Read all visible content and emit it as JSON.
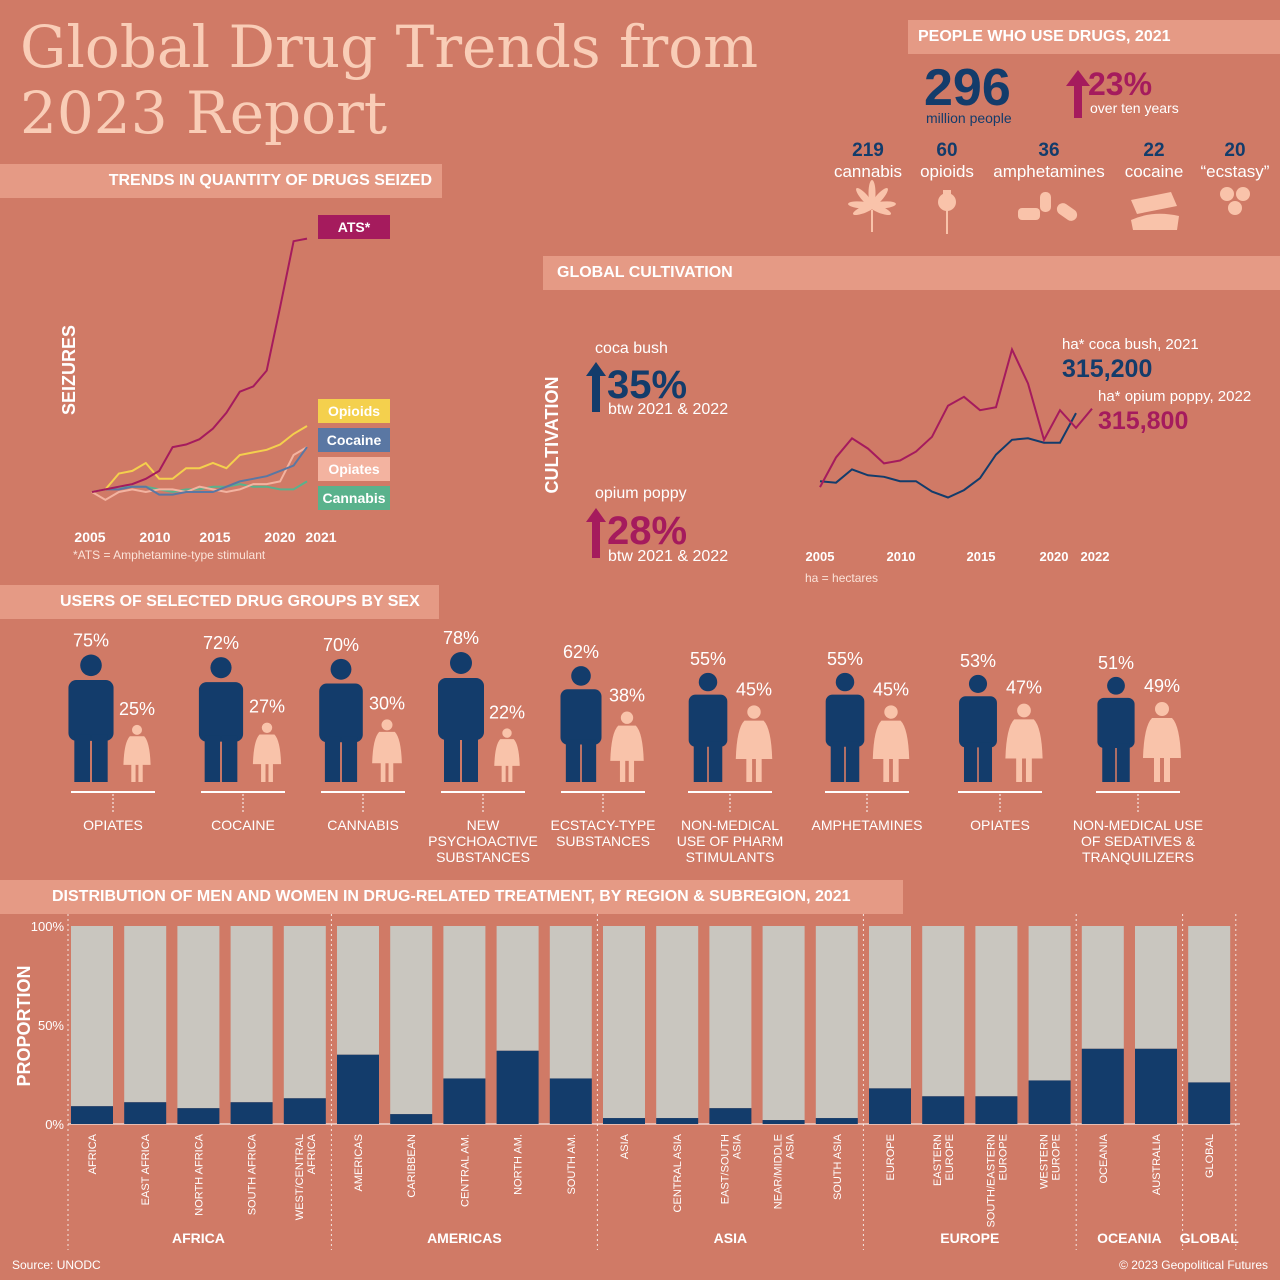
{
  "title_line1": "Global Drug Trends from",
  "title_line2": "2023 Report",
  "people": {
    "header": "PEOPLE WHO USE DRUGS, 2021",
    "total": "296",
    "total_unit": "million people",
    "change": "23%",
    "change_note": "over ten years",
    "drugs": [
      {
        "value": "219",
        "name": "cannabis",
        "icon": "cannabis-leaf-icon"
      },
      {
        "value": "60",
        "name": "opioids",
        "icon": "poppy-icon"
      },
      {
        "value": "36",
        "name": "amphetamines",
        "icon": "pills-icon"
      },
      {
        "value": "22",
        "name": "cocaine",
        "icon": "cocaine-card-icon"
      },
      {
        "value": "20",
        "name": "“ecstasy”",
        "icon": "ecstasy-tablets-icon"
      }
    ]
  },
  "seizures": {
    "header": "TRENDS IN QUANTITY OF DRUGS SEIZED",
    "ylabel": "SEIZURES",
    "footnote": "*ATS = Amphetamine-type stimulant",
    "x_ticks": [
      "2005",
      "2010",
      "2015",
      "2020",
      "2021"
    ]
  },
  "cultivation": {
    "header": "GLOBAL CULTIVATION",
    "ylabel": "CULTIVATION",
    "coca_label": "coca bush",
    "coca_change": "35%",
    "coca_note": "btw 2021 & 2022",
    "poppy_label": "opium poppy",
    "poppy_change": "28%",
    "poppy_note": "btw 2021 & 2022",
    "coca_callout_label": "ha* coca bush, 2021",
    "coca_callout_value": "315,200",
    "poppy_callout_label": "ha* opium poppy, 2022",
    "poppy_callout_value": "315,800",
    "footnote": "ha = hectares",
    "x_ticks": [
      "2005",
      "2010",
      "2015",
      "2020",
      "2022"
    ]
  },
  "users_by_sex": {
    "header": "USERS OF SELECTED DRUG GROUPS BY SEX",
    "groups": [
      {
        "men": 75,
        "women": 25,
        "men_label": "75%",
        "women_label": "25%",
        "name": [
          "OPIATES"
        ]
      },
      {
        "men": 72,
        "women": 27,
        "men_label": "72%",
        "women_label": "27%",
        "name": [
          "COCAINE"
        ]
      },
      {
        "men": 70,
        "women": 30,
        "men_label": "70%",
        "women_label": "30%",
        "name": [
          "CANNABIS"
        ]
      },
      {
        "men": 78,
        "women": 22,
        "men_label": "78%",
        "women_label": "22%",
        "name": [
          "NEW",
          "PSYCHOACTIVE",
          "SUBSTANCES"
        ]
      },
      {
        "men": 62,
        "women": 38,
        "men_label": "62%",
        "women_label": "38%",
        "name": [
          "ECSTACY-TYPE",
          "SUBSTANCES"
        ]
      },
      {
        "men": 55,
        "women": 45,
        "men_label": "55%",
        "women_label": "45%",
        "name": [
          "NON-MEDICAL",
          "USE OF PHARM",
          "STIMULANTS"
        ]
      },
      {
        "men": 55,
        "women": 45,
        "men_label": "55%",
        "women_label": "45%",
        "name": [
          "AMPHETAMINES"
        ]
      },
      {
        "men": 53,
        "women": 47,
        "men_label": "53%",
        "women_label": "47%",
        "name": [
          "OPIATES"
        ]
      },
      {
        "men": 51,
        "women": 49,
        "men_label": "51%",
        "women_label": "49%",
        "name": [
          "NON-MEDICAL USE",
          "OF SEDATIVES &",
          "TRANQUILIZERS"
        ]
      }
    ]
  },
  "treatment": {
    "header": "DISTRIBUTION OF MEN AND WOMEN IN DRUG-RELATED TREATMENT, BY REGION & SUBREGION, 2021",
    "ylabel": "PROPORTION",
    "y_ticks": [
      "100%",
      "50%",
      "0%"
    ]
  },
  "source": "Source: UNODC",
  "copyright": "© 2023 Geopolitical Futures",
  "colors": {
    "background": "#d07a66",
    "band": "#e59a85",
    "navy": "#133c6b",
    "magenta": "#a51b5d",
    "peach": "#f9c3aa",
    "grey_bar": "#c9c6bf",
    "opioids": "#f4d04d",
    "cocaine": "#5a77a3",
    "opiates": "#f3b3a0",
    "cannabis": "#59b28c"
  },
  "chart_data": [
    {
      "type": "line",
      "title": "TRENDS IN QUANTITY OF DRUGS SEIZED",
      "ylabel": "SEIZURES",
      "x": [
        2005,
        2006,
        2007,
        2008,
        2009,
        2010,
        2011,
        2012,
        2013,
        2014,
        2015,
        2016,
        2017,
        2018,
        2019,
        2020,
        2021
      ],
      "xlim": [
        2005,
        2021
      ],
      "ylim": [
        0,
        100
      ],
      "series": [
        {
          "name": "ATS*",
          "color": "#a51b5d",
          "values": [
            0,
            1,
            2,
            3,
            5,
            8,
            17,
            18,
            20,
            24,
            30,
            38,
            40,
            46,
            70,
            95,
            96
          ]
        },
        {
          "name": "Opioids",
          "color": "#f4d04d",
          "values": [
            0,
            1,
            7,
            8,
            11,
            5,
            5,
            9,
            9,
            11,
            9,
            14,
            15,
            16,
            18,
            22,
            25
          ]
        },
        {
          "name": "Cocaine",
          "color": "#5a77a3",
          "values": [
            0,
            1,
            1,
            2,
            2,
            -1,
            -1,
            0,
            0,
            0,
            2,
            4,
            5,
            6,
            8,
            10,
            17
          ]
        },
        {
          "name": "Opiates",
          "color": "#f3b3a0",
          "values": [
            0,
            -3,
            0,
            1,
            0,
            1,
            1,
            0,
            2,
            1,
            0,
            1,
            3,
            3,
            4,
            14,
            17
          ]
        },
        {
          "name": "Cannabis",
          "color": "#59b28c",
          "values": [
            0,
            1,
            2,
            2,
            2,
            1,
            0,
            1,
            1,
            2,
            2,
            3,
            2,
            2,
            1,
            1,
            4
          ]
        }
      ]
    },
    {
      "type": "line",
      "title": "GLOBAL CULTIVATION",
      "ylabel": "CULTIVATION",
      "x": [
        2005,
        2006,
        2007,
        2008,
        2009,
        2010,
        2011,
        2012,
        2013,
        2014,
        2015,
        2016,
        2017,
        2018,
        2019,
        2020,
        2021,
        2022
      ],
      "xlim": [
        2005,
        2022
      ],
      "ylim": [
        0,
        100
      ],
      "series": [
        {
          "name": "ha* coca bush, 2021",
          "color": "#133c6b",
          "values": [
            10,
            9,
            18,
            14,
            13,
            10,
            10,
            3,
            -1,
            4,
            12,
            28,
            38,
            39,
            36,
            36,
            56,
            null
          ]
        },
        {
          "name": "ha* opium poppy, 2022",
          "color": "#a51b5d",
          "values": [
            6,
            26,
            39,
            32,
            22,
            24,
            30,
            40,
            61,
            67,
            58,
            60,
            99,
            76,
            38,
            58,
            46,
            59
          ]
        }
      ]
    },
    {
      "type": "bar",
      "title": "DISTRIBUTION OF MEN AND WOMEN IN DRUG-RELATED TREATMENT, BY REGION & SUBREGION, 2021",
      "ylabel": "PROPORTION",
      "ylim": [
        0,
        100
      ],
      "stacked": true,
      "groups": [
        {
          "name": "AFRICA",
          "categories": [
            "AFRICA",
            "EAST AFRICA",
            "NORTH AFRICA",
            "SOUTH AFRICA",
            "WEST/CENTRAL AFRICA"
          ],
          "values": [
            9,
            11,
            8,
            11,
            13
          ]
        },
        {
          "name": "AMERICAS",
          "categories": [
            "AMERICAS",
            "CARIBBEAN",
            "CENTRAL AM.",
            "NORTH AM.",
            "SOUTH AM."
          ],
          "values": [
            35,
            5,
            23,
            37,
            23
          ]
        },
        {
          "name": "ASIA",
          "categories": [
            "ASIA",
            "CENTRAL ASIA",
            "EAST/SOUTH ASIA",
            "NEAR/MIDDLE ASIA",
            "SOUTH ASIA"
          ],
          "values": [
            3,
            3,
            8,
            2,
            3
          ]
        },
        {
          "name": "EUROPE",
          "categories": [
            "EUROPE",
            "EASTERN EUROPE",
            "SOUTH/EASTERN EUROPE",
            "WESTERN EUROPE"
          ],
          "values": [
            18,
            14,
            14,
            22
          ]
        },
        {
          "name": "OCEANIA",
          "categories": [
            "OCEANIA",
            "AUSTRALIA"
          ],
          "values": [
            38,
            38
          ]
        },
        {
          "name": "GLOBAL",
          "categories": [
            "GLOBAL"
          ],
          "values": [
            21
          ]
        }
      ]
    }
  ]
}
